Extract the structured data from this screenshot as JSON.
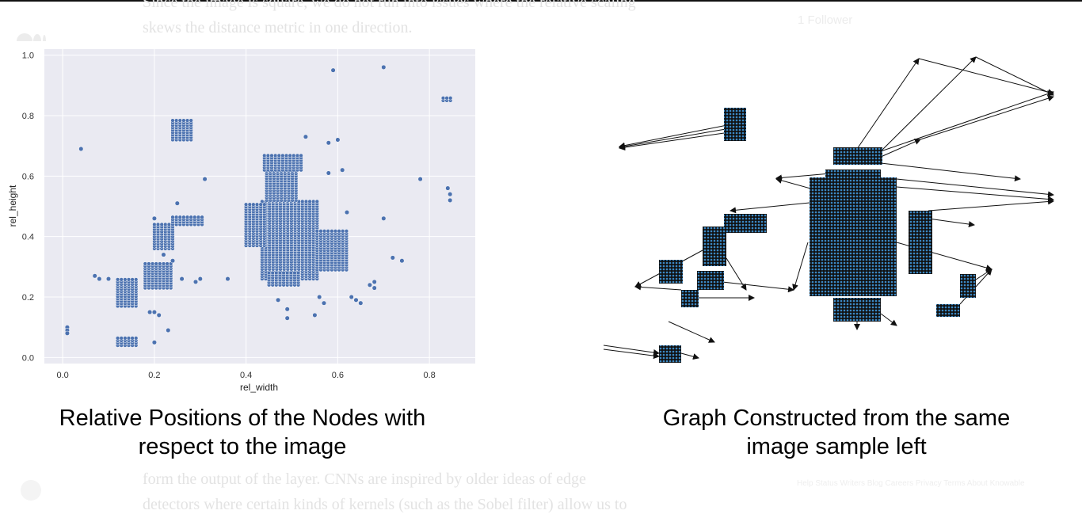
{
  "article": {
    "bg_line_1": "Since the image is square, we do not run into issues where the relative scaling",
    "bg_line_2": "skews the distance metric in one direction.",
    "bg_line_3": "form the output of the layer. CNNs are inspired by older ideas of edge",
    "bg_line_4": "detectors where certain kinds of kernels (such as the Sobel filter) allow us to"
  },
  "sidebar": {
    "followers": "1 Follower",
    "footer_links": "Help Status Writers Blog Careers Privacy Terms About Knowable"
  },
  "figure": {
    "caption_left": "Relative Positions of the Nodes with respect to the image",
    "caption_right": "Graph Constructed from the same image sample left"
  },
  "colors": {
    "point": "#4c72b0",
    "plot_bg": "#eaeaf2",
    "node": "#3b88c4"
  },
  "chart_data": {
    "type": "scatter",
    "xlabel": "rel_width",
    "ylabel": "rel_height",
    "xlim": [
      -0.04,
      0.9
    ],
    "ylim": [
      -0.02,
      1.02
    ],
    "xticks": [
      "0.0",
      "0.2",
      "0.4",
      "0.6",
      "0.8"
    ],
    "yticks": [
      "0.0",
      "0.2",
      "0.4",
      "0.6",
      "0.8",
      "1.0"
    ],
    "grid": true,
    "clusters": [
      {
        "x": [
          0.435,
          0.555
        ],
        "y": [
          0.26,
          0.52
        ]
      },
      {
        "x": [
          0.445,
          0.515
        ],
        "y": [
          0.52,
          0.62
        ]
      },
      {
        "x": [
          0.44,
          0.52
        ],
        "y": [
          0.62,
          0.67
        ]
      },
      {
        "x": [
          0.4,
          0.44
        ],
        "y": [
          0.37,
          0.51
        ]
      },
      {
        "x": [
          0.555,
          0.62
        ],
        "y": [
          0.29,
          0.42
        ]
      },
      {
        "x": [
          0.45,
          0.52
        ],
        "y": [
          0.24,
          0.28
        ]
      },
      {
        "x": [
          0.2,
          0.24
        ],
        "y": [
          0.36,
          0.44
        ]
      },
      {
        "x": [
          0.24,
          0.31
        ],
        "y": [
          0.44,
          0.47
        ]
      },
      {
        "x": [
          0.24,
          0.28
        ],
        "y": [
          0.72,
          0.79
        ]
      },
      {
        "x": [
          0.12,
          0.16
        ],
        "y": [
          0.04,
          0.07
        ]
      },
      {
        "x": [
          0.18,
          0.24
        ],
        "y": [
          0.23,
          0.31
        ]
      },
      {
        "x": [
          0.12,
          0.16
        ],
        "y": [
          0.17,
          0.26
        ]
      },
      {
        "x": [
          0.83,
          0.85
        ],
        "y": [
          0.85,
          0.86
        ]
      }
    ],
    "points": [
      {
        "x": 0.04,
        "y": 0.69
      },
      {
        "x": 0.59,
        "y": 0.95
      },
      {
        "x": 0.7,
        "y": 0.96
      },
      {
        "x": 0.53,
        "y": 0.73
      },
      {
        "x": 0.58,
        "y": 0.71
      },
      {
        "x": 0.6,
        "y": 0.72
      },
      {
        "x": 0.31,
        "y": 0.59
      },
      {
        "x": 0.58,
        "y": 0.61
      },
      {
        "x": 0.61,
        "y": 0.62
      },
      {
        "x": 0.78,
        "y": 0.59
      },
      {
        "x": 0.84,
        "y": 0.56
      },
      {
        "x": 0.845,
        "y": 0.52
      },
      {
        "x": 0.845,
        "y": 0.54
      },
      {
        "x": 0.7,
        "y": 0.46
      },
      {
        "x": 0.62,
        "y": 0.48
      },
      {
        "x": 0.72,
        "y": 0.33
      },
      {
        "x": 0.74,
        "y": 0.32
      },
      {
        "x": 0.68,
        "y": 0.25
      },
      {
        "x": 0.68,
        "y": 0.23
      },
      {
        "x": 0.67,
        "y": 0.24
      },
      {
        "x": 0.63,
        "y": 0.2
      },
      {
        "x": 0.64,
        "y": 0.19
      },
      {
        "x": 0.65,
        "y": 0.18
      },
      {
        "x": 0.56,
        "y": 0.2
      },
      {
        "x": 0.57,
        "y": 0.18
      },
      {
        "x": 0.55,
        "y": 0.14
      },
      {
        "x": 0.49,
        "y": 0.13
      },
      {
        "x": 0.49,
        "y": 0.16
      },
      {
        "x": 0.47,
        "y": 0.19
      },
      {
        "x": 0.36,
        "y": 0.26
      },
      {
        "x": 0.3,
        "y": 0.26
      },
      {
        "x": 0.29,
        "y": 0.25
      },
      {
        "x": 0.01,
        "y": 0.1
      },
      {
        "x": 0.01,
        "y": 0.09
      },
      {
        "x": 0.01,
        "y": 0.08
      },
      {
        "x": 0.2,
        "y": 0.05
      },
      {
        "x": 0.23,
        "y": 0.09
      },
      {
        "x": 0.19,
        "y": 0.15
      },
      {
        "x": 0.2,
        "y": 0.15
      },
      {
        "x": 0.21,
        "y": 0.14
      },
      {
        "x": 0.07,
        "y": 0.27
      },
      {
        "x": 0.08,
        "y": 0.26
      },
      {
        "x": 0.1,
        "y": 0.26
      },
      {
        "x": 0.2,
        "y": 0.46
      },
      {
        "x": 0.25,
        "y": 0.51
      },
      {
        "x": 0.26,
        "y": 0.26
      },
      {
        "x": 0.24,
        "y": 0.32
      },
      {
        "x": 0.22,
        "y": 0.34
      }
    ]
  }
}
